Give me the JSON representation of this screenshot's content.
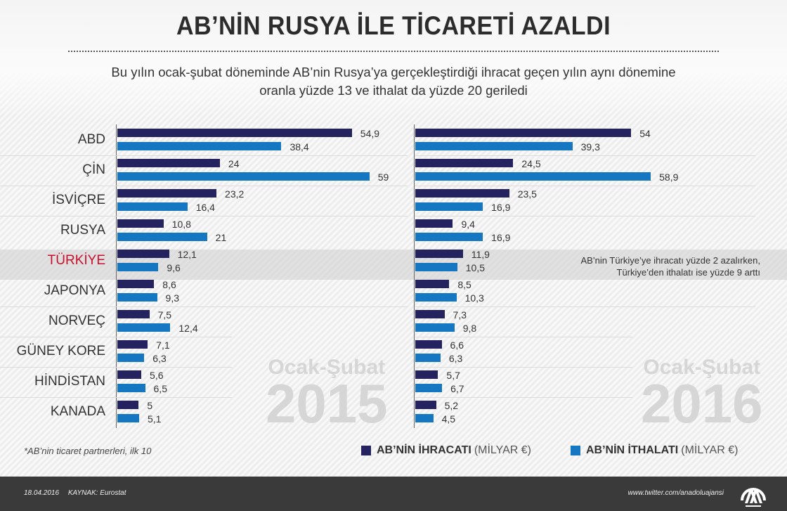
{
  "header": {
    "title": "AB’NİN RUSYA İLE TİCARETİ AZALDI",
    "subtitle_line1": "Bu yılın ocak-şubat döneminde AB’nin Rusya’ya gerçekleştirdiği ihracat geçen yılın aynı dönemine",
    "subtitle_line2": "oranla yüzde 13 ve ithalat da yüzde 20 geriledi"
  },
  "colors": {
    "export": "#24225f",
    "import": "#1576c2",
    "highlight": "#c8102e"
  },
  "chart_data": [
    {
      "type": "bar",
      "orientation": "horizontal",
      "watermark_line1": "Ocak-Şubat",
      "watermark_line2": "2015",
      "categories": [
        "ABD",
        "ÇİN",
        "İSVİÇRE",
        "RUSYA",
        "TÜRKİYE",
        "JAPONYA",
        "NORVEÇ",
        "GÜNEY KORE",
        "HİNDİSTAN",
        "KANADA"
      ],
      "series": [
        {
          "name": "AB’NİN İHRACATI (MİLYAR €)",
          "values": [
            54.9,
            24,
            23.2,
            10.8,
            12.1,
            8.6,
            7.5,
            7.1,
            5.6,
            5
          ],
          "labels": [
            "54,9",
            "24",
            "23,2",
            "10,8",
            "12,1",
            "8,6",
            "7,5",
            "7,1",
            "5,6",
            "5"
          ]
        },
        {
          "name": "AB’NİN İTHALATI (MİLYAR €)",
          "values": [
            38.4,
            59,
            16.4,
            21,
            9.6,
            9.3,
            12.4,
            6.3,
            6.5,
            5.1
          ],
          "labels": [
            "38,4",
            "59",
            "16,4",
            "21",
            "9,6",
            "9,3",
            "12,4",
            "6,3",
            "6,5",
            "5,1"
          ]
        }
      ],
      "highlight_category": "TÜRKİYE"
    },
    {
      "type": "bar",
      "orientation": "horizontal",
      "watermark_line1": "Ocak-Şubat",
      "watermark_line2": "2016",
      "categories": [
        "ABD",
        "ÇİN",
        "İSVİÇRE",
        "RUSYA",
        "TÜRKİYE",
        "JAPONYA",
        "NORVEÇ",
        "GÜNEY KORE",
        "HİNDİSTAN",
        "KANADA"
      ],
      "series": [
        {
          "name": "AB’NİN İHRACATI (MİLYAR €)",
          "values": [
            54,
            24.5,
            23.5,
            9.4,
            11.9,
            8.5,
            7.3,
            6.6,
            5.7,
            5.2
          ],
          "labels": [
            "54",
            "24,5",
            "23,5",
            "9,4",
            "11,9",
            "8,5",
            "7,3",
            "6,6",
            "5,7",
            "5,2"
          ]
        },
        {
          "name": "AB’NİN İTHALATI (MİLYAR €)",
          "values": [
            39.3,
            58.9,
            16.9,
            16.9,
            10.5,
            10.3,
            9.8,
            6.3,
            6.7,
            4.5
          ],
          "labels": [
            "39,3",
            "58,9",
            "16,9",
            "16,9",
            "10,5",
            "10,3",
            "9,8",
            "6,3",
            "6,7",
            "4,5"
          ]
        }
      ],
      "annotation": {
        "line1": "AB’nin Türkiye’ye ihracatı yüzde 2 azalırken,",
        "line2": "Türkiye’den ithalatı ise yüzde 9 arttı"
      }
    }
  ],
  "footnote": "*AB’nin ticaret partnerleri, ilk 10",
  "legend": {
    "export_bold": "AB’NİN İHRACATI",
    "export_unit": "(MİLYAR €)",
    "import_bold": "AB’NİN İTHALATI",
    "import_unit": "(MİLYAR €)"
  },
  "footer": {
    "date": "18.04.2016",
    "source": "KAYNAK: Eurostat",
    "twitter": "www.twitter.com/anadoluajansi",
    "logo": "AA"
  }
}
